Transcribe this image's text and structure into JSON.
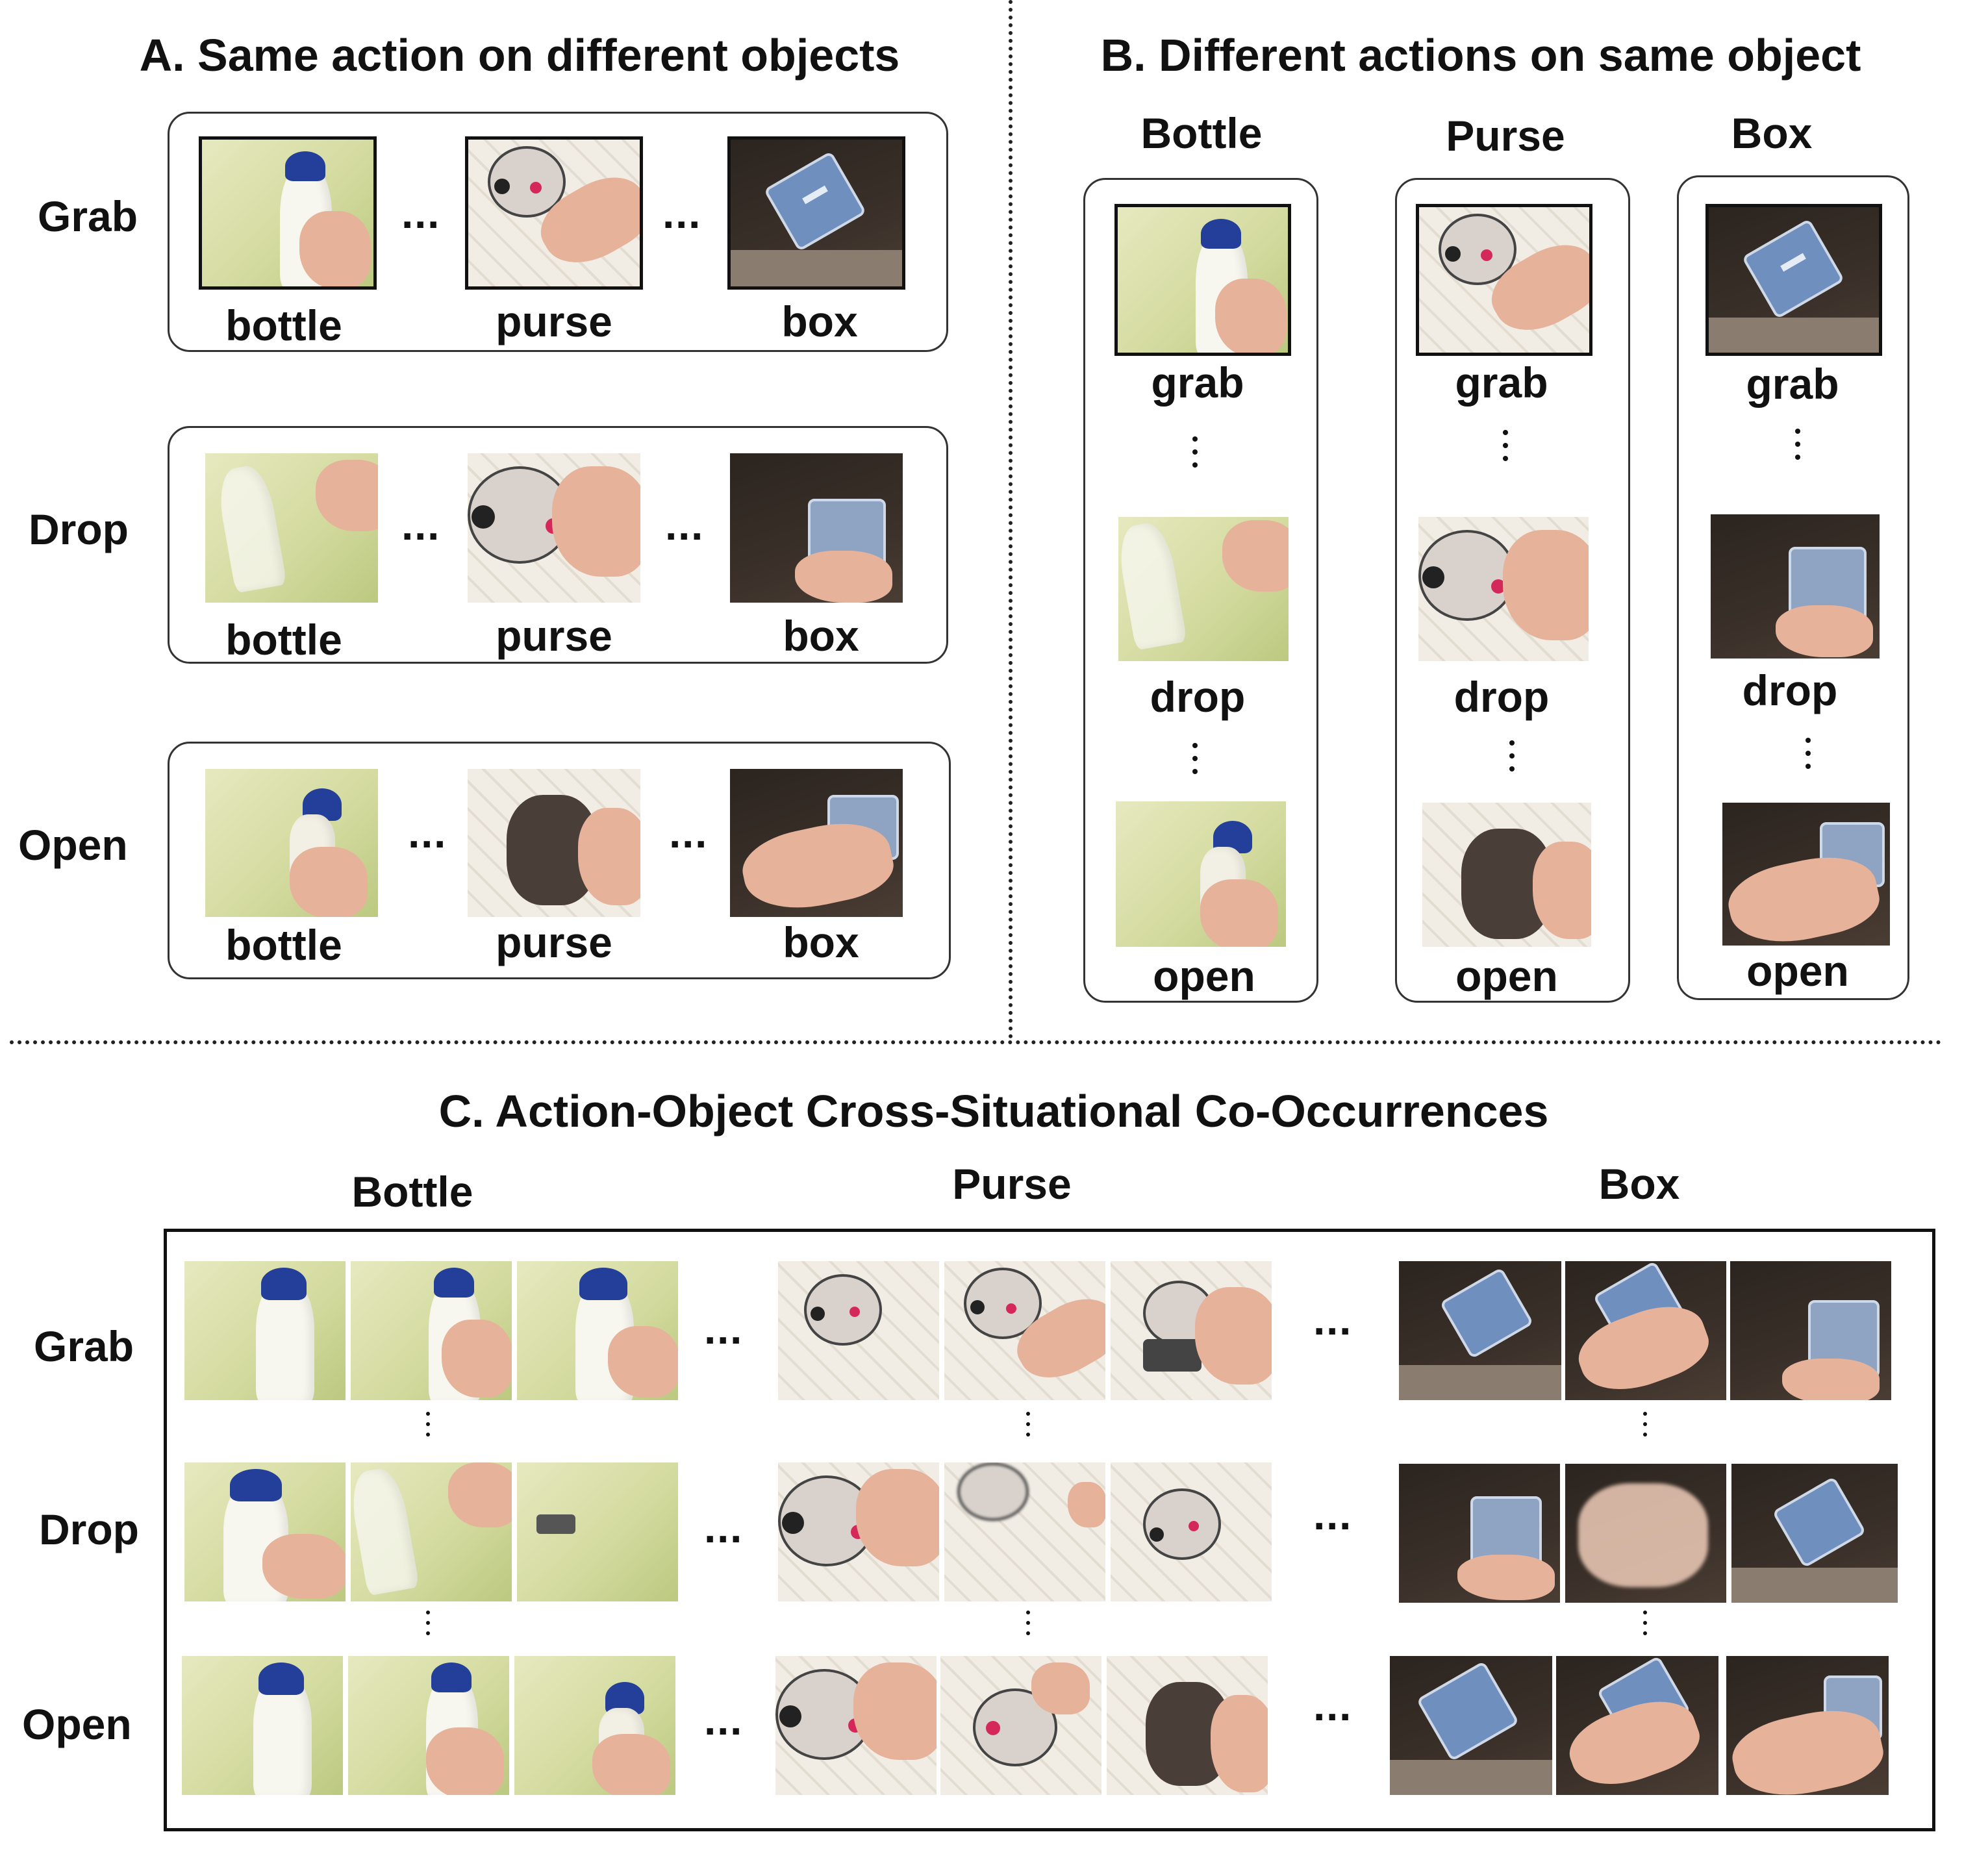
{
  "panel_a": {
    "title": "A. Same action on different objects",
    "rows": [
      {
        "label": "Grab",
        "objects": [
          "bottle",
          "purse",
          "box"
        ]
      },
      {
        "label": "Drop",
        "objects": [
          "bottle",
          "purse",
          "box"
        ]
      },
      {
        "label": "Open",
        "objects": [
          "bottle",
          "purse",
          "box"
        ]
      }
    ],
    "ellipsis": "···"
  },
  "panel_b": {
    "title": "B. Different actions on same object",
    "columns": [
      {
        "label": "Bottle",
        "actions": [
          "grab",
          "drop",
          "open"
        ]
      },
      {
        "label": "Purse",
        "actions": [
          "grab",
          "drop",
          "open"
        ]
      },
      {
        "label": "Box",
        "actions": [
          "grab",
          "drop",
          "open"
        ]
      }
    ]
  },
  "panel_c": {
    "title": "C. Action-Object Cross-Situational Co-Occurrences",
    "column_labels": [
      "Bottle",
      "Purse",
      "Box"
    ],
    "row_labels": [
      "Grab",
      "Drop",
      "Open"
    ],
    "ellipsis": "···"
  }
}
